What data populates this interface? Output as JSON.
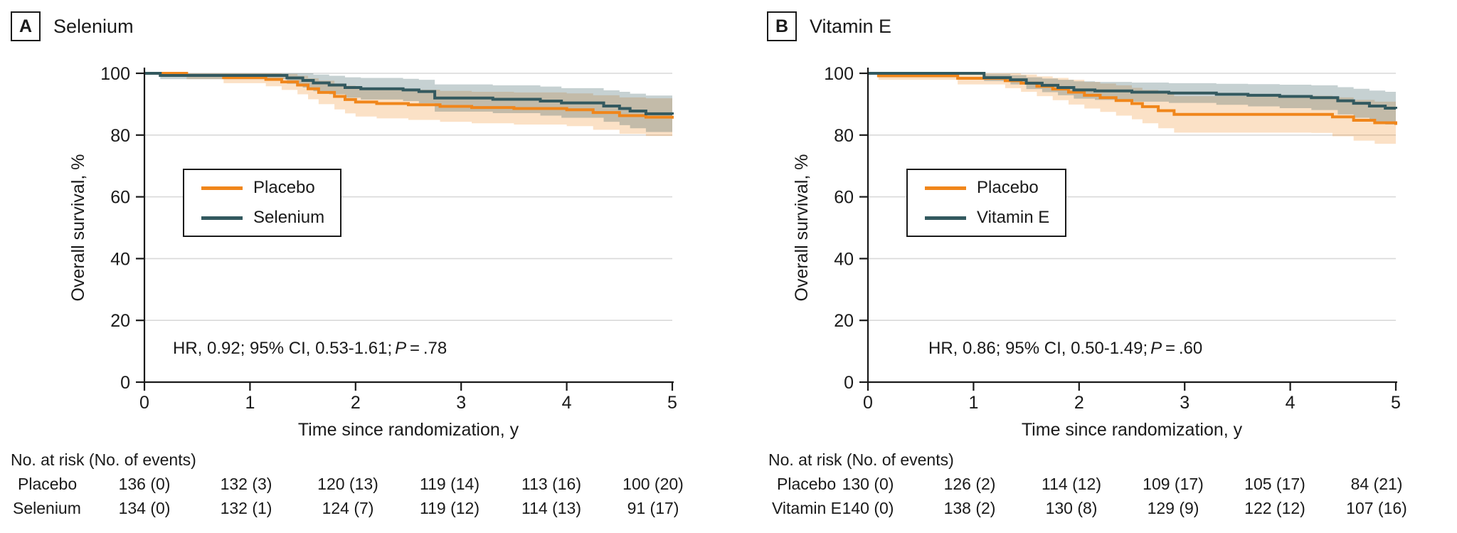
{
  "colors": {
    "placebo": "#F0861B",
    "treatment": "#33595F",
    "ci_placebo": "rgba(240,134,27,0.25)",
    "ci_treatment": "rgba(51,89,95,0.28)",
    "grid": "#D9D9D9",
    "axis": "#1A1A1A"
  },
  "panels": [
    {
      "letter": "A",
      "title": "Selenium",
      "legend": [
        "Placebo",
        "Selenium"
      ],
      "hr_prefix": "HR, 0.92; 95% CI, 0.53-1.61;",
      "p_label": "P",
      "p_value": " = .78",
      "risk_header": "No. at risk (No. of events)",
      "risk_rows": [
        {
          "label": "Placebo",
          "values": [
            "136 (0)",
            "132 (3)",
            "120 (13)",
            "119 (14)",
            "113 (16)",
            "100 (20)"
          ]
        },
        {
          "label": "Selenium",
          "values": [
            "134 (0)",
            "132 (1)",
            "124 (7)",
            "119 (12)",
            "114 (13)",
            "91 (17)"
          ]
        }
      ]
    },
    {
      "letter": "B",
      "title": "Vitamin E",
      "legend": [
        "Placebo",
        "Vitamin E"
      ],
      "hr_prefix": "HR, 0.86; 95% CI, 0.50-1.49;",
      "p_label": "P",
      "p_value": " = .60",
      "risk_header": "No. at risk (No. of events)",
      "risk_rows": [
        {
          "label": "Placebo",
          "values": [
            "130 (0)",
            "126 (2)",
            "114 (12)",
            "109 (17)",
            "105 (17)",
            "84 (21)"
          ]
        },
        {
          "label": "Vitamin E",
          "values": [
            "140 (0)",
            "138 (2)",
            "130 (8)",
            "129 (9)",
            "122 (12)",
            "107 (16)"
          ]
        }
      ]
    }
  ],
  "chart_data": [
    {
      "type": "line",
      "subtype": "kaplan-meier-step-with-ci",
      "title": "Selenium",
      "xlabel": "Time since randomization, y",
      "ylabel": "Overall survival, %",
      "xlim": [
        0,
        5
      ],
      "ylim": [
        0,
        100
      ],
      "xticks": [
        0,
        1,
        2,
        3,
        4,
        5
      ],
      "yticks": [
        0,
        20,
        40,
        60,
        80,
        100
      ],
      "grid": "horizontal",
      "legend_position": "upper-left-inside",
      "annotation": "HR, 0.92; 95% CI, 0.53-1.61; P=.78",
      "series": [
        {
          "name": "Placebo",
          "color_key": "placebo",
          "t": [
            0,
            0.4,
            0.75,
            1.0,
            1.15,
            1.3,
            1.45,
            1.55,
            1.65,
            1.8,
            1.9,
            2.0,
            2.2,
            2.5,
            2.8,
            3.1,
            3.5,
            4.0,
            4.25,
            4.5,
            4.75,
            5.0
          ],
          "surv": [
            100,
            99.3,
            98.6,
            98.6,
            98.0,
            97.2,
            96.2,
            95.0,
            93.8,
            92.5,
            91.5,
            90.7,
            90.2,
            89.8,
            89.3,
            88.9,
            88.6,
            88.2,
            87.3,
            86.3,
            85.8,
            85.3
          ],
          "ci_delta": [
            0.5,
            1.2,
            1.8,
            1.8,
            2.2,
            2.6,
            3.0,
            3.4,
            3.8,
            4.2,
            4.5,
            4.7,
            4.8,
            4.9,
            5.0,
            5.1,
            5.2,
            5.3,
            5.6,
            5.9,
            6.1,
            6.3
          ]
        },
        {
          "name": "Selenium",
          "color_key": "treatment",
          "t": [
            0,
            0.15,
            1.35,
            1.5,
            1.6,
            1.75,
            1.9,
            2.05,
            2.45,
            2.6,
            2.75,
            3.3,
            3.75,
            3.95,
            4.35,
            4.5,
            4.6,
            4.75,
            5.0
          ],
          "surv": [
            100,
            99.3,
            98.5,
            97.7,
            96.9,
            96.2,
            95.4,
            95.0,
            94.6,
            94.1,
            92.0,
            91.6,
            91.0,
            90.4,
            89.4,
            88.6,
            87.8,
            86.9,
            86.6
          ],
          "ci_delta": [
            0.5,
            1.2,
            1.9,
            2.3,
            2.7,
            3.0,
            3.3,
            3.5,
            3.6,
            3.8,
            4.4,
            4.5,
            4.7,
            4.8,
            5.1,
            5.4,
            5.6,
            5.9,
            6.0
          ]
        }
      ]
    },
    {
      "type": "line",
      "subtype": "kaplan-meier-step-with-ci",
      "title": "Vitamin E",
      "xlabel": "Time since randomization, y",
      "ylabel": "Overall survival, %",
      "xlim": [
        0,
        5
      ],
      "ylim": [
        0,
        100
      ],
      "xticks": [
        0,
        1,
        2,
        3,
        4,
        5
      ],
      "yticks": [
        0,
        20,
        40,
        60,
        80,
        100
      ],
      "grid": "horizontal",
      "legend_position": "upper-left-inside",
      "annotation": "HR, 0.86; 95% CI, 0.50-1.49; P=.60",
      "series": [
        {
          "name": "Placebo",
          "color_key": "placebo",
          "t": [
            0,
            0.1,
            0.85,
            1.3,
            1.45,
            1.6,
            1.75,
            1.9,
            2.05,
            2.2,
            2.35,
            2.5,
            2.6,
            2.75,
            2.9,
            4.2,
            4.4,
            4.6,
            4.8,
            5.0
          ],
          "surv": [
            100,
            99.2,
            98.4,
            97.6,
            96.8,
            95.8,
            94.9,
            93.9,
            92.9,
            92.1,
            91.2,
            90.2,
            89.2,
            87.9,
            86.7,
            86.7,
            85.9,
            84.8,
            84.0,
            83.3
          ],
          "ci_delta": [
            0.5,
            1.3,
            2.0,
            2.4,
            2.8,
            3.2,
            3.6,
            4.0,
            4.3,
            4.6,
            4.9,
            5.1,
            5.4,
            5.7,
            5.9,
            6.0,
            6.3,
            6.6,
            6.8,
            7.0
          ]
        },
        {
          "name": "Vitamin E",
          "color_key": "treatment",
          "t": [
            0,
            1.1,
            1.35,
            1.5,
            1.65,
            1.8,
            1.95,
            2.15,
            2.5,
            2.85,
            3.3,
            3.6,
            3.9,
            4.2,
            4.45,
            4.6,
            4.75,
            4.9,
            5.0
          ],
          "surv": [
            100,
            98.6,
            97.9,
            96.8,
            96.1,
            95.4,
            94.6,
            94.3,
            93.9,
            93.6,
            93.2,
            92.9,
            92.5,
            92.1,
            91.1,
            90.3,
            89.4,
            88.7,
            88.5
          ],
          "ci_delta": [
            0.4,
            1.1,
            1.5,
            1.9,
            2.2,
            2.5,
            2.8,
            2.9,
            3.1,
            3.2,
            3.4,
            3.6,
            3.8,
            4.0,
            4.4,
            4.7,
            5.0,
            5.3,
            5.4
          ]
        }
      ]
    }
  ]
}
